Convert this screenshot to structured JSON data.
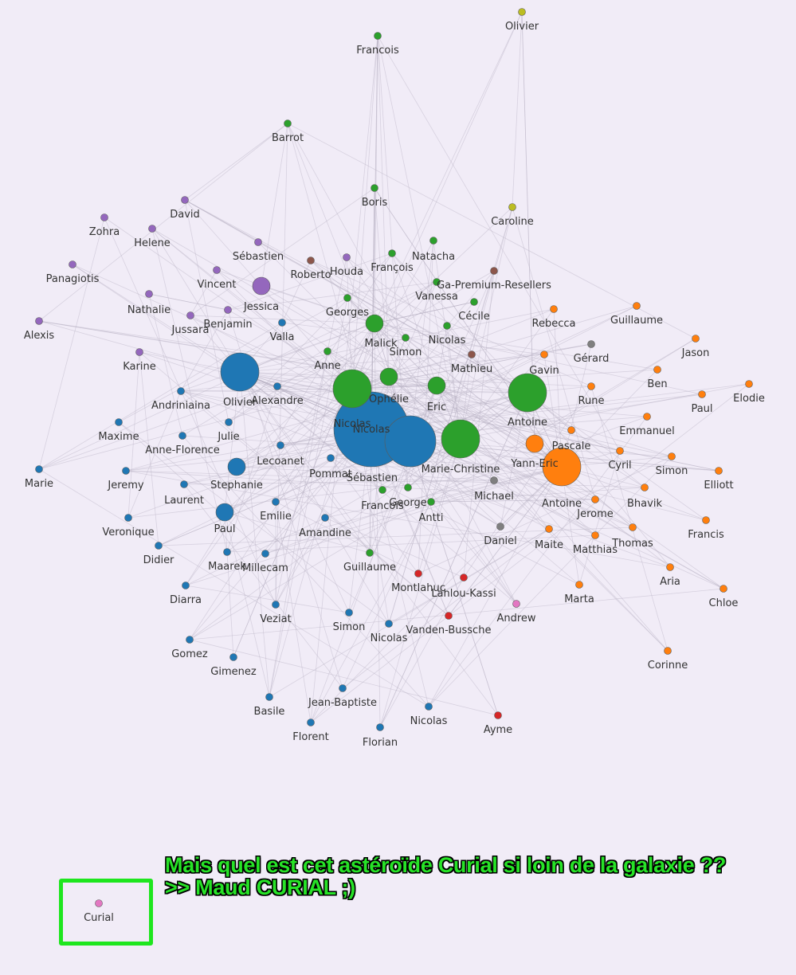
{
  "colors": {
    "background": "#f1ecf7",
    "blue": "#1f77b4",
    "green": "#2ca02c",
    "orange": "#ff7f0e",
    "purple": "#9467bd",
    "brown": "#8c564b",
    "red": "#d62728",
    "grey": "#7f7f7f",
    "olive": "#bcbd22",
    "pink": "#e377c2",
    "annotation_text": "#27e327",
    "annotation_box": "#1ee61e"
  },
  "annotation": {
    "line1": "Mais quel est cet astéroïde Curial si loin de la galaxie ??",
    "line2": ">> Maud CURIAL ;)"
  },
  "graph": {
    "nodes": [
      {
        "id": "n1",
        "label": "Olivier",
        "group": "olive",
        "size": "small"
      },
      {
        "id": "n2",
        "label": "Francois",
        "group": "green",
        "size": "small"
      },
      {
        "id": "n3",
        "label": "Barrot",
        "group": "green",
        "size": "small"
      },
      {
        "id": "n4",
        "label": "Boris",
        "group": "green",
        "size": "small"
      },
      {
        "id": "n5",
        "label": "Caroline",
        "group": "olive",
        "size": "small"
      },
      {
        "id": "n6",
        "label": "David",
        "group": "purple",
        "size": "small"
      },
      {
        "id": "n7",
        "label": "Zohra",
        "group": "purple",
        "size": "small"
      },
      {
        "id": "n8",
        "label": "Helene",
        "group": "purple",
        "size": "small"
      },
      {
        "id": "n9",
        "label": "Sébastien",
        "group": "purple",
        "size": "small"
      },
      {
        "id": "n10",
        "label": "Natacha",
        "group": "green",
        "size": "small"
      },
      {
        "id": "n11",
        "label": "François",
        "group": "green",
        "size": "small"
      },
      {
        "id": "n12",
        "label": "Panagiotis",
        "group": "purple",
        "size": "small"
      },
      {
        "id": "n13",
        "label": "Roberto",
        "group": "brown",
        "size": "small"
      },
      {
        "id": "n14",
        "label": "Houda",
        "group": "purple",
        "size": "small"
      },
      {
        "id": "n15",
        "label": "Vincent",
        "group": "purple",
        "size": "small"
      },
      {
        "id": "n16",
        "label": "Jessica",
        "group": "purple",
        "size": "medium"
      },
      {
        "id": "n17",
        "label": "Ga-Premium-Resellers",
        "group": "brown",
        "size": "small"
      },
      {
        "id": "n18",
        "label": "Vanessa",
        "group": "green",
        "size": "small"
      },
      {
        "id": "n19",
        "label": "Nathalie",
        "group": "purple",
        "size": "small"
      },
      {
        "id": "n20",
        "label": "Georges",
        "group": "green",
        "size": "small"
      },
      {
        "id": "n21",
        "label": "Cécile",
        "group": "green",
        "size": "small"
      },
      {
        "id": "n22",
        "label": "Rebecca",
        "group": "orange",
        "size": "small"
      },
      {
        "id": "n23",
        "label": "Guillaume",
        "group": "orange",
        "size": "small"
      },
      {
        "id": "n24",
        "label": "Jussara",
        "group": "purple",
        "size": "small"
      },
      {
        "id": "n25",
        "label": "Benjamin",
        "group": "purple",
        "size": "small"
      },
      {
        "id": "n26",
        "label": "Alexis",
        "group": "purple",
        "size": "small"
      },
      {
        "id": "n27",
        "label": "Valla",
        "group": "blue",
        "size": "small"
      },
      {
        "id": "n28",
        "label": "Malick",
        "group": "green",
        "size": "medium"
      },
      {
        "id": "n29",
        "label": "Nicolas",
        "group": "green",
        "size": "small"
      },
      {
        "id": "n30",
        "label": "Simon",
        "group": "green",
        "size": "small"
      },
      {
        "id": "n31",
        "label": "Gérard",
        "group": "grey",
        "size": "small"
      },
      {
        "id": "n32",
        "label": "Jason",
        "group": "orange",
        "size": "small"
      },
      {
        "id": "n33",
        "label": "Karine",
        "group": "purple",
        "size": "small"
      },
      {
        "id": "n34",
        "label": "Anne",
        "group": "green",
        "size": "small"
      },
      {
        "id": "n35",
        "label": "Mathieu",
        "group": "brown",
        "size": "small"
      },
      {
        "id": "n36",
        "label": "Gavin",
        "group": "orange",
        "size": "small"
      },
      {
        "id": "n37",
        "label": "Ben",
        "group": "orange",
        "size": "small"
      },
      {
        "id": "n38",
        "label": "Olivier",
        "group": "blue",
        "size": "large"
      },
      {
        "id": "n39",
        "label": "Ophélie",
        "group": "green",
        "size": "medium"
      },
      {
        "id": "n40",
        "label": "Elodie",
        "group": "orange",
        "size": "small"
      },
      {
        "id": "n41",
        "label": "Alexandre",
        "group": "blue",
        "size": "small"
      },
      {
        "id": "n42",
        "label": "Eric",
        "group": "green",
        "size": "medium"
      },
      {
        "id": "n43",
        "label": "Rune",
        "group": "orange",
        "size": "small"
      },
      {
        "id": "n44",
        "label": "Paul",
        "group": "orange",
        "size": "small"
      },
      {
        "id": "n45",
        "label": "Andriniaina",
        "group": "blue",
        "size": "small"
      },
      {
        "id": "n46",
        "label": "Nicolas",
        "group": "green",
        "size": "large"
      },
      {
        "id": "n47",
        "label": "Antoine",
        "group": "green",
        "size": "large"
      },
      {
        "id": "n48",
        "label": "Maxime",
        "group": "blue",
        "size": "small"
      },
      {
        "id": "n49",
        "label": "Julie",
        "group": "blue",
        "size": "small"
      },
      {
        "id": "n50",
        "label": "Nicolas",
        "group": "blue",
        "size": "huge"
      },
      {
        "id": "n51",
        "label": "Emmanuel",
        "group": "orange",
        "size": "small"
      },
      {
        "id": "n52",
        "label": "Anne-Florence",
        "group": "blue",
        "size": "small"
      },
      {
        "id": "n53",
        "label": "Pascale",
        "group": "orange",
        "size": "small"
      },
      {
        "id": "n54",
        "label": "Lecoanet",
        "group": "blue",
        "size": "small"
      },
      {
        "id": "n55",
        "label": "Marie-Christine",
        "group": "green",
        "size": "large"
      },
      {
        "id": "n56",
        "label": "Yann-Eric",
        "group": "orange",
        "size": "medium"
      },
      {
        "id": "n57",
        "label": "Cyril",
        "group": "orange",
        "size": "small"
      },
      {
        "id": "n58",
        "label": "Simon",
        "group": "orange",
        "size": "small"
      },
      {
        "id": "n59",
        "label": "Marie",
        "group": "blue",
        "size": "small"
      },
      {
        "id": "n60",
        "label": "Jeremy",
        "group": "blue",
        "size": "small"
      },
      {
        "id": "n61",
        "label": "Stephanie",
        "group": "blue",
        "size": "medium"
      },
      {
        "id": "n62",
        "label": "Pommat",
        "group": "blue",
        "size": "small"
      },
      {
        "id": "n63",
        "label": "Sébastien",
        "group": "blue",
        "size": "xlarge"
      },
      {
        "id": "n64",
        "label": "Elliott",
        "group": "orange",
        "size": "small"
      },
      {
        "id": "n65",
        "label": "Laurent",
        "group": "blue",
        "size": "small"
      },
      {
        "id": "n66",
        "label": "Francois",
        "group": "green",
        "size": "small"
      },
      {
        "id": "n67",
        "label": "George",
        "group": "green",
        "size": "small"
      },
      {
        "id": "n68",
        "label": "Michael",
        "group": "grey",
        "size": "small"
      },
      {
        "id": "n69",
        "label": "Antoine",
        "group": "orange",
        "size": "large"
      },
      {
        "id": "n70",
        "label": "Bhavik",
        "group": "orange",
        "size": "small"
      },
      {
        "id": "n71",
        "label": "Emilie",
        "group": "blue",
        "size": "small"
      },
      {
        "id": "n72",
        "label": "Antti",
        "group": "green",
        "size": "small"
      },
      {
        "id": "n73",
        "label": "Jerome",
        "group": "orange",
        "size": "small"
      },
      {
        "id": "n74",
        "label": "Veronique",
        "group": "blue",
        "size": "small"
      },
      {
        "id": "n75",
        "label": "Paul",
        "group": "blue",
        "size": "medium"
      },
      {
        "id": "n76",
        "label": "Amandine",
        "group": "blue",
        "size": "small"
      },
      {
        "id": "n77",
        "label": "Francis",
        "group": "orange",
        "size": "small"
      },
      {
        "id": "n78",
        "label": "Daniel",
        "group": "grey",
        "size": "small"
      },
      {
        "id": "n79",
        "label": "Maite",
        "group": "orange",
        "size": "small"
      },
      {
        "id": "n80",
        "label": "Thomas",
        "group": "orange",
        "size": "small"
      },
      {
        "id": "n81",
        "label": "Matthias",
        "group": "orange",
        "size": "small"
      },
      {
        "id": "n82",
        "label": "Didier",
        "group": "blue",
        "size": "small"
      },
      {
        "id": "n83",
        "label": "Maarek",
        "group": "blue",
        "size": "small"
      },
      {
        "id": "n84",
        "label": "Millecam",
        "group": "blue",
        "size": "small"
      },
      {
        "id": "n85",
        "label": "Guillaume",
        "group": "green",
        "size": "small"
      },
      {
        "id": "n86",
        "label": "Montlahuc",
        "group": "red",
        "size": "small"
      },
      {
        "id": "n87",
        "label": "Lahlou-Kassi",
        "group": "red",
        "size": "small"
      },
      {
        "id": "n88",
        "label": "Aria",
        "group": "orange",
        "size": "small"
      },
      {
        "id": "n89",
        "label": "Diarra",
        "group": "blue",
        "size": "small"
      },
      {
        "id": "n90",
        "label": "Marta",
        "group": "orange",
        "size": "small"
      },
      {
        "id": "n91",
        "label": "Chloe",
        "group": "orange",
        "size": "small"
      },
      {
        "id": "n92",
        "label": "Andrew",
        "group": "pink",
        "size": "small"
      },
      {
        "id": "n93",
        "label": "Veziat",
        "group": "blue",
        "size": "small"
      },
      {
        "id": "n94",
        "label": "Simon",
        "group": "blue",
        "size": "small"
      },
      {
        "id": "n95",
        "label": "Vanden-Bussche",
        "group": "red",
        "size": "small"
      },
      {
        "id": "n96",
        "label": "Nicolas",
        "group": "blue",
        "size": "small"
      },
      {
        "id": "n97",
        "label": "Gomez",
        "group": "blue",
        "size": "small"
      },
      {
        "id": "n98",
        "label": "Corinne",
        "group": "orange",
        "size": "small"
      },
      {
        "id": "n99",
        "label": "Gimenez",
        "group": "blue",
        "size": "small"
      },
      {
        "id": "n100",
        "label": "Basile",
        "group": "blue",
        "size": "small"
      },
      {
        "id": "n101",
        "label": "Jean-Baptiste",
        "group": "blue",
        "size": "small"
      },
      {
        "id": "n102",
        "label": "Nicolas",
        "group": "blue",
        "size": "small"
      },
      {
        "id": "n103",
        "label": "Florent",
        "group": "blue",
        "size": "small"
      },
      {
        "id": "n104",
        "label": "Ayme",
        "group": "red",
        "size": "small"
      },
      {
        "id": "n105",
        "label": "Florian",
        "group": "blue",
        "size": "small"
      },
      {
        "id": "n106",
        "label": "Curial",
        "group": "pink",
        "size": "small"
      }
    ]
  }
}
